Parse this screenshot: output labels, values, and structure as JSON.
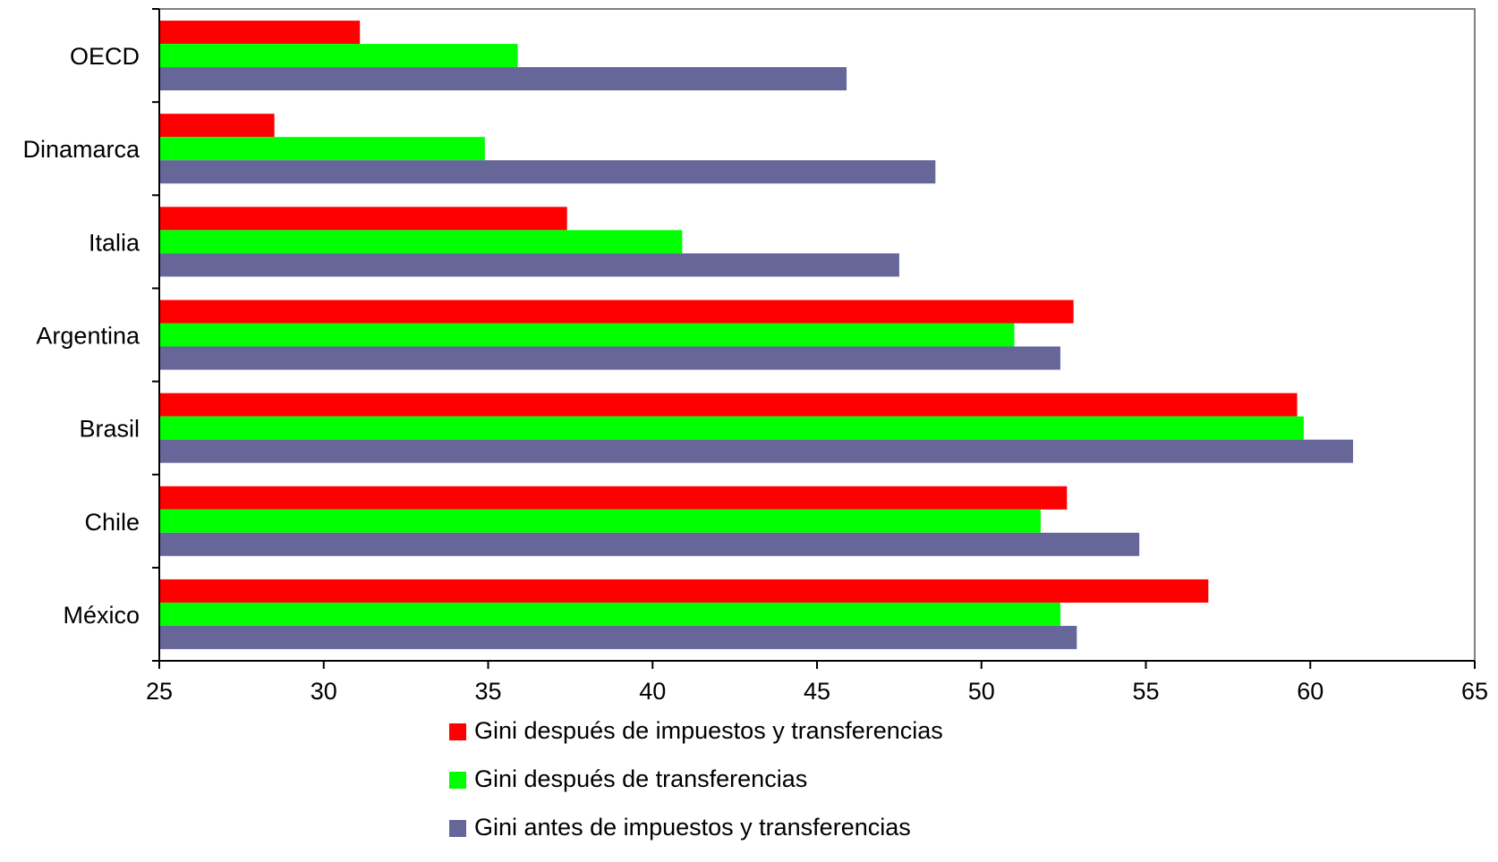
{
  "chart_data": {
    "type": "bar",
    "orientation": "horizontal",
    "title": "",
    "xlabel": "",
    "ylabel": "",
    "xlim": [
      25,
      65
    ],
    "x_ticks": [
      25,
      30,
      35,
      40,
      45,
      50,
      55,
      60,
      65
    ],
    "categories": [
      "OECD",
      "Dinamarca",
      "Italia",
      "Argentina",
      "Brasil",
      "Chile",
      "México"
    ],
    "series": [
      {
        "name": "Gini después de impuestos y transferencias",
        "color": "#ff0000",
        "values": [
          31.1,
          28.5,
          37.4,
          52.8,
          59.6,
          52.6,
          56.9
        ]
      },
      {
        "name": "Gini después de transferencias",
        "color": "#00ff00",
        "values": [
          35.9,
          34.9,
          40.9,
          51.0,
          59.8,
          51.8,
          52.4
        ]
      },
      {
        "name": "Gini antes de impuestos y transferencias",
        "color": "#666699",
        "values": [
          45.9,
          48.6,
          47.5,
          52.4,
          61.3,
          54.8,
          52.9
        ]
      }
    ],
    "grid": false,
    "legend_position": "bottom"
  }
}
